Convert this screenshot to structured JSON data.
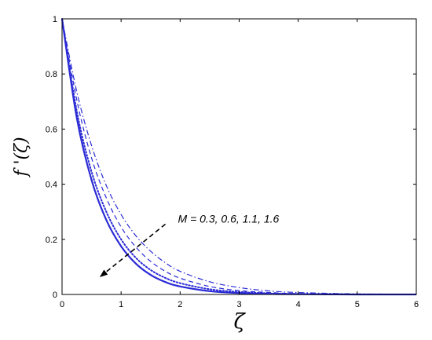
{
  "chart_data": {
    "type": "line",
    "xlabel": "ζ",
    "ylabel": "f '(ζ)",
    "xlim": [
      0,
      6
    ],
    "ylim": [
      0,
      1
    ],
    "xticks": [
      "0",
      "1",
      "2",
      "3",
      "4",
      "5",
      "6"
    ],
    "yticks": [
      "0",
      "0.2",
      "0.4",
      "0.6",
      "0.8",
      "1"
    ],
    "grid": false,
    "line_color": "#2b2bd6",
    "x": [
      0,
      0.25,
      0.5,
      0.75,
      1,
      1.25,
      1.5,
      1.75,
      2,
      2.5,
      3,
      3.5,
      4,
      5,
      6
    ],
    "series": [
      {
        "style": "solid",
        "values": [
          1,
          0.64,
          0.415,
          0.27,
          0.175,
          0.112,
          0.071,
          0.045,
          0.029,
          0.012,
          0.005,
          0.002,
          0.001,
          0,
          0
        ]
      },
      {
        "style": "dotted",
        "values": [
          1,
          0.665,
          0.445,
          0.3,
          0.2,
          0.133,
          0.089,
          0.06,
          0.041,
          0.019,
          0.009,
          0.004,
          0.002,
          0,
          0
        ]
      },
      {
        "style": "dashed",
        "values": [
          1,
          0.705,
          0.495,
          0.35,
          0.245,
          0.172,
          0.12,
          0.084,
          0.059,
          0.029,
          0.014,
          0.007,
          0.003,
          0.001,
          0
        ]
      },
      {
        "style": "dashdot",
        "values": [
          1,
          0.735,
          0.54,
          0.395,
          0.29,
          0.213,
          0.157,
          0.115,
          0.084,
          0.046,
          0.025,
          0.013,
          0.007,
          0.002,
          0.001
        ]
      }
    ],
    "annotation": {
      "text": "M = 0.3, 0.6, 1.1, 1.6",
      "arrow_from": [
        1.75,
        0.255
      ],
      "arrow_to": [
        0.65,
        0.065
      ]
    }
  }
}
